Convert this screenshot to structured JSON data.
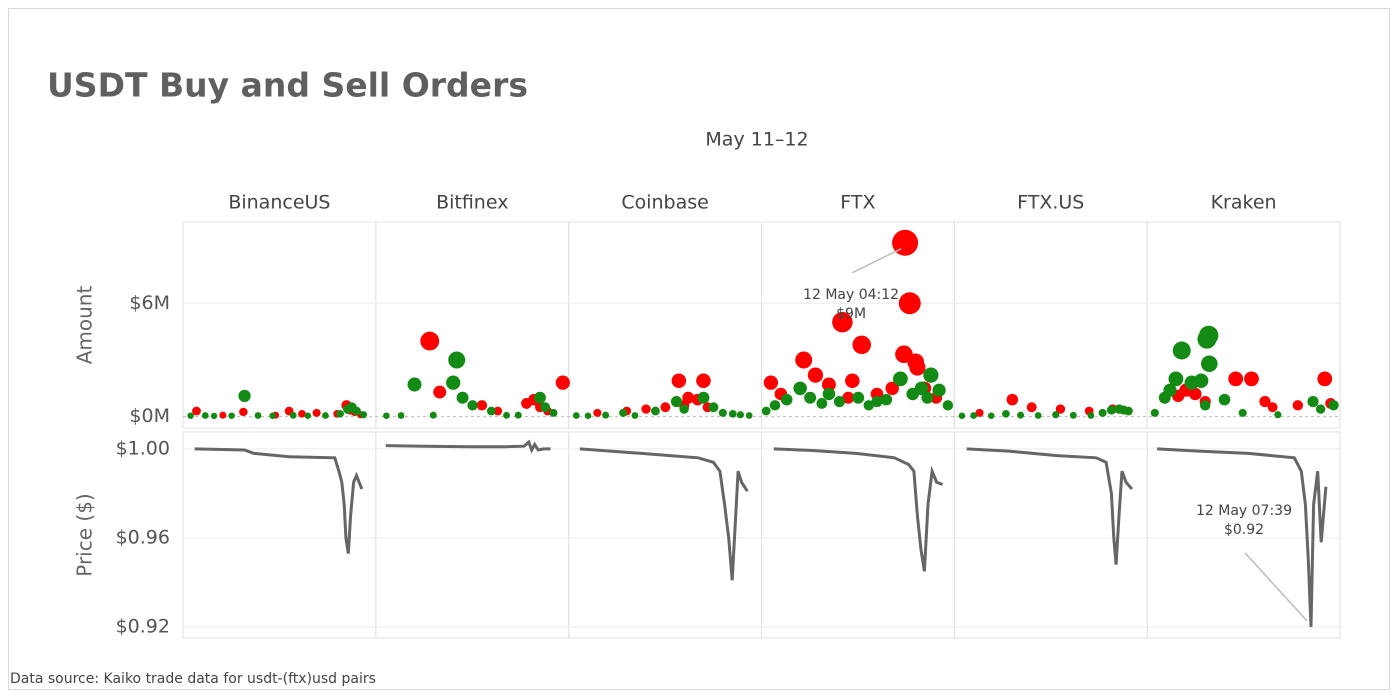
{
  "chart_data": {
    "type": "faceted-bubble",
    "title": "USDT Buy and Sell Orders",
    "subtitle": "May 11–12",
    "source": "Data source: Kaiko trade data for usdt-(ftx)usd pairs",
    "buy_color": "#138a13",
    "sell_color": "#ff0000",
    "price_color": "#666666",
    "xlim": [
      3.7,
      36.6
    ],
    "amount": {
      "label": "Amount",
      "ylim": [
        -600000,
        10300000
      ],
      "yticks": [
        {
          "value": 0,
          "label": "$0M"
        },
        {
          "value": 6000000,
          "label": "$6M"
        }
      ]
    },
    "price": {
      "label": "Price ($)",
      "ylim": [
        0.915,
        1.0076
      ],
      "yticks": [
        {
          "value": 1.0,
          "label": "$1.00"
        },
        {
          "value": 0.96,
          "label": "$0.96"
        },
        {
          "value": 0.92,
          "label": "$0.92"
        }
      ]
    },
    "panels": [
      {
        "name": "BinanceUS",
        "sell_x": [
          6.0,
          10.5,
          14.0,
          19.5,
          21.8,
          24.0,
          26.5,
          30.0,
          31.6,
          32.2,
          33.0,
          34.0
        ],
        "sell_values": [
          300000,
          80000,
          250000,
          80000,
          300000,
          150000,
          200000,
          150000,
          600000,
          350000,
          250000,
          100000
        ],
        "buy_x": [
          5.0,
          7.5,
          9.0,
          12.0,
          14.2,
          16.5,
          19.0,
          22.5,
          25.0,
          28.0,
          30.5,
          31.8,
          32.5,
          33.3,
          34.5
        ],
        "buy_values": [
          50000,
          60000,
          40000,
          50000,
          1100000,
          60000,
          50000,
          70000,
          50000,
          60000,
          150000,
          400000,
          500000,
          300000,
          100000
        ],
        "price_x": [
          5.7,
          14.2,
          15.8,
          21.8,
          29.6,
          30.3,
          30.8,
          31.2,
          31.5,
          31.9,
          32.3,
          32.8,
          33.3,
          34.2
        ],
        "price_values": [
          1.0,
          0.9995,
          0.998,
          0.9965,
          0.996,
          0.99,
          0.985,
          0.975,
          0.96,
          0.953,
          0.97,
          0.985,
          0.988,
          0.982
        ]
      },
      {
        "name": "Bitfinex",
        "sell_x": [
          12.9,
          14.6,
          21.8,
          24.5,
          29.4,
          30.7,
          31.7,
          33.0,
          35.6
        ],
        "sell_values": [
          4000000,
          1300000,
          600000,
          300000,
          700000,
          900000,
          500000,
          300000,
          1800000
        ],
        "buy_x": [
          5.5,
          8.0,
          10.3,
          13.5,
          16.9,
          17.5,
          18.5,
          20.2,
          23.4,
          26.0,
          28.0,
          31.7,
          32.6,
          34.0
        ],
        "buy_values": [
          50000,
          60000,
          1700000,
          80000,
          1800000,
          3000000,
          1000000,
          600000,
          300000,
          70000,
          80000,
          1000000,
          500000,
          200000
        ],
        "price_x": [
          5.4,
          12.0,
          20.0,
          26.0,
          29.0,
          29.8,
          30.3,
          30.8,
          31.4,
          32.3,
          33.5
        ],
        "price_values": [
          1.0015,
          1.0012,
          1.001,
          1.001,
          1.0012,
          1.003,
          0.9995,
          1.002,
          0.9995,
          1.0,
          1.0
        ]
      },
      {
        "name": "Coinbase",
        "sell_x": [
          8.6,
          13.6,
          16.9,
          20.2,
          22.5,
          23.4,
          24.1,
          25.7,
          26.7,
          27.4
        ],
        "sell_values": [
          200000,
          300000,
          400000,
          500000,
          1900000,
          600000,
          1000000,
          900000,
          1900000,
          500000
        ],
        "buy_x": [
          5.0,
          7.0,
          10.0,
          13.0,
          15.0,
          18.5,
          22.1,
          23.4,
          26.7,
          28.4,
          30.0,
          31.7,
          33.0,
          34.5
        ],
        "buy_values": [
          60000,
          50000,
          80000,
          200000,
          60000,
          300000,
          800000,
          400000,
          1000000,
          500000,
          200000,
          150000,
          100000,
          60000
        ],
        "price_x": [
          5.6,
          13.4,
          21.0,
          25.8,
          28.4,
          29.5,
          30.3,
          31.0,
          31.6,
          32.1,
          32.6,
          33.2,
          34.2
        ],
        "price_values": [
          1.0,
          0.9985,
          0.997,
          0.996,
          0.994,
          0.99,
          0.975,
          0.96,
          0.941,
          0.965,
          0.99,
          0.985,
          0.981
        ]
      },
      {
        "name": "FTX",
        "sell_x": [
          5.3,
          7.0,
          10.9,
          12.9,
          15.2,
          17.5,
          18.5,
          19.2,
          20.8,
          23.4,
          26.0,
          28.0,
          28.2,
          29.0,
          30.0,
          30.3,
          31.5,
          33.5
        ],
        "sell_values": [
          1800000,
          1200000,
          3000000,
          2200000,
          1700000,
          5000000,
          1000000,
          1900000,
          3800000,
          1200000,
          1500000,
          3300000,
          9200000,
          6000000,
          2900000,
          2600000,
          1500000,
          1000000
        ],
        "buy_x": [
          4.5,
          6.0,
          8.0,
          10.3,
          12.0,
          14.0,
          15.2,
          17.0,
          20.2,
          22.0,
          23.4,
          25.0,
          27.4,
          29.5,
          31.0,
          32.0,
          32.6,
          34.0,
          35.5
        ],
        "buy_values": [
          300000,
          600000,
          900000,
          1500000,
          1000000,
          700000,
          1200000,
          800000,
          1000000,
          600000,
          800000,
          900000,
          2000000,
          1200000,
          1500000,
          1000000,
          2200000,
          1400000,
          600000
        ],
        "price_x": [
          5.8,
          12.4,
          19.8,
          26.4,
          28.8,
          29.7,
          30.3,
          30.9,
          31.5,
          32.1,
          32.8,
          33.6,
          34.6
        ],
        "price_values": [
          1.0,
          0.9993,
          0.998,
          0.996,
          0.993,
          0.99,
          0.97,
          0.955,
          0.945,
          0.975,
          0.99,
          0.985,
          0.984
        ],
        "annotation": {
          "facet": "amount",
          "x": 28.2,
          "y": 9200000,
          "lines": [
            "12 May 04:12",
            "$9M"
          ]
        }
      },
      {
        "name": "FTX.US",
        "sell_x": [
          8.0,
          13.6,
          16.9,
          21.8,
          26.7,
          30.7
        ],
        "sell_values": [
          200000,
          900000,
          500000,
          400000,
          300000,
          400000
        ],
        "buy_x": [
          5.0,
          7.0,
          10.0,
          12.5,
          15.0,
          18.0,
          21.0,
          24.0,
          27.0,
          29.0,
          30.5,
          31.8,
          32.6,
          33.4
        ],
        "buy_values": [
          50000,
          60000,
          50000,
          150000,
          80000,
          60000,
          100000,
          70000,
          60000,
          200000,
          350000,
          400000,
          350000,
          300000
        ],
        "price_x": [
          5.8,
          12.9,
          21.2,
          27.9,
          29.6,
          30.5,
          30.9,
          31.3,
          31.8,
          32.3,
          33.0,
          34.0
        ],
        "price_values": [
          1.0,
          0.999,
          0.997,
          0.996,
          0.994,
          0.98,
          0.96,
          0.948,
          0.97,
          0.99,
          0.985,
          0.982
        ]
      },
      {
        "name": "Kraken",
        "sell_x": [
          9.0,
          10.3,
          11.9,
          13.6,
          18.8,
          21.5,
          23.8,
          25.1,
          29.4,
          34.0,
          35.0
        ],
        "sell_values": [
          1100000,
          1400000,
          1200000,
          800000,
          2000000,
          2000000,
          800000,
          500000,
          600000,
          2000000,
          700000
        ],
        "buy_x": [
          5.0,
          6.7,
          7.6,
          8.6,
          9.6,
          11.3,
          12.9,
          13.6,
          13.9,
          14.2,
          14.3,
          16.9,
          20.0,
          26.0,
          32.0,
          33.3,
          35.5
        ],
        "buy_values": [
          200000,
          1000000,
          1400000,
          2000000,
          3500000,
          1800000,
          1900000,
          600000,
          4100000,
          4300000,
          2800000,
          900000,
          200000,
          100000,
          800000,
          400000,
          600000
        ],
        "price_x": [
          5.4,
          12.5,
          21.0,
          28.8,
          30.0,
          30.7,
          31.2,
          31.65,
          32.1,
          32.8,
          33.4,
          34.2
        ],
        "price_values": [
          1.0,
          0.999,
          0.998,
          0.996,
          0.99,
          0.975,
          0.95,
          0.92,
          0.975,
          0.99,
          0.958,
          0.983
        ],
        "annotation": {
          "facet": "price",
          "x": 31.65,
          "y": 0.92,
          "lines": [
            "12 May 07:39",
            "$0.92"
          ]
        }
      }
    ]
  }
}
